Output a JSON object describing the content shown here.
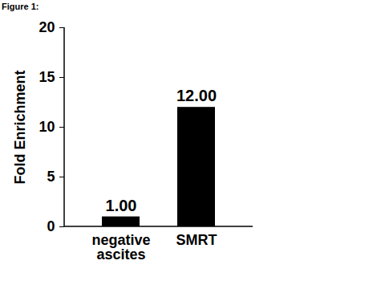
{
  "chart_data": {
    "type": "bar",
    "title": "Figure 1:",
    "categories": [
      "negative ascites",
      "SMRT"
    ],
    "values": [
      1,
      12
    ],
    "value_labels": [
      "1.00",
      "12.00"
    ],
    "color": "#000000",
    "ylabel": "Fold Enrichment",
    "ylim": [
      0,
      20
    ],
    "yticks": [
      0,
      5,
      10,
      15,
      20
    ],
    "grid": false,
    "data_labels": true
  }
}
